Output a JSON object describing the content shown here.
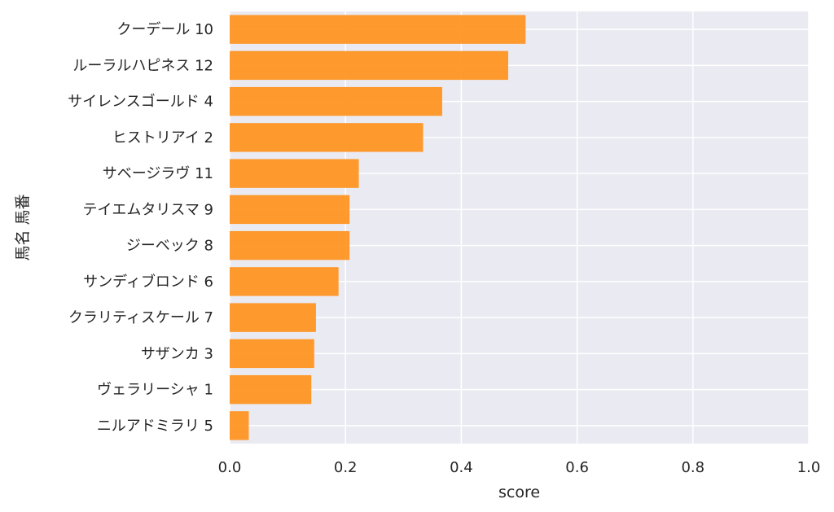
{
  "chart_data": {
    "type": "bar",
    "orientation": "horizontal",
    "categories": [
      "クーデール 10",
      "ルーラルハピネス 12",
      "サイレンスゴールド 4",
      "ヒストリアイ 2",
      "サベージラヴ 11",
      "テイエムタリスマ 9",
      "ジーベック 8",
      "サンディブロンド 6",
      "クラリティスケール 7",
      "サザンカ 3",
      "ヴェラリーシャ 1",
      "ニルアドミラリ 5"
    ],
    "values": [
      0.511,
      0.481,
      0.367,
      0.334,
      0.223,
      0.207,
      0.207,
      0.188,
      0.149,
      0.146,
      0.141,
      0.033
    ],
    "xlabel": "score",
    "ylabel": "馬名 馬番",
    "xlim": [
      0,
      1.0
    ],
    "xticks": [
      "0.0",
      "0.2",
      "0.4",
      "0.6",
      "0.8",
      "1.0"
    ],
    "grid": true,
    "bar_color": "#ff9017",
    "background_color": "#eaeaf2",
    "grid_color": "#ffffff"
  }
}
